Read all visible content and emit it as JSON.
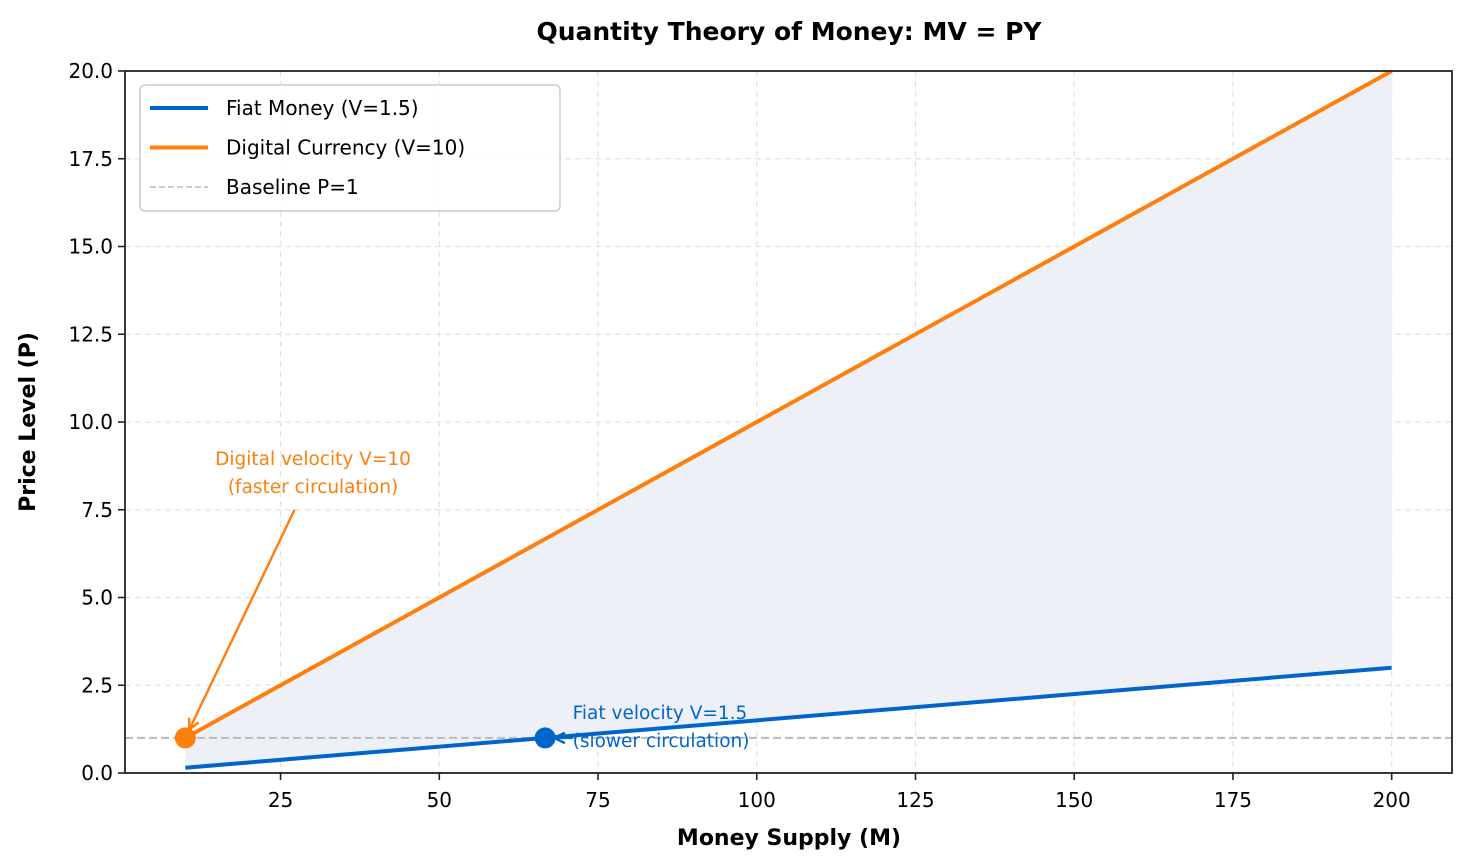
{
  "chart_data": {
    "type": "line",
    "title": "Quantity Theory of Money: MV = PY",
    "xlabel": "Money Supply (M)",
    "ylabel": "Price Level (P)",
    "xlim": [
      0.5,
      209.5
    ],
    "ylim": [
      0,
      20
    ],
    "xticks": [
      25,
      50,
      75,
      100,
      125,
      150,
      175,
      200
    ],
    "xtick_labels": [
      "25",
      "50",
      "75",
      "100",
      "125",
      "150",
      "175",
      "200"
    ],
    "yticks": [
      0,
      2.5,
      5,
      7.5,
      10,
      12.5,
      15,
      17.5,
      20
    ],
    "ytick_labels": [
      "0.0",
      "2.5",
      "5.0",
      "7.5",
      "10.0",
      "12.5",
      "15.0",
      "17.5",
      "20.0"
    ],
    "grid": true,
    "legend_position": "upper left",
    "x": [
      10,
      200
    ],
    "series": [
      {
        "name": "Fiat Money (V=1.5)",
        "color": "#0066cc",
        "values": [
          0.15,
          3.0
        ],
        "style": "solid",
        "width": 4
      },
      {
        "name": "Digital Currency (V=10)",
        "color": "#ff7f0e",
        "values": [
          1.0,
          20.0
        ],
        "style": "solid",
        "width": 4
      },
      {
        "name": "Baseline P=1",
        "color": "#bbbbbb",
        "y_constant": 1,
        "style": "dashed",
        "width": 1.5
      }
    ],
    "fill_between": {
      "series": [
        "Fiat Money (V=1.5)",
        "Digital Currency (V=10)"
      ],
      "color": "#eef0f8"
    },
    "markers": [
      {
        "label": "fiat-point",
        "x": 66.67,
        "y": 1,
        "color": "#0066cc"
      },
      {
        "label": "digital-point",
        "x": 10,
        "y": 1,
        "color": "#ff7f0e"
      }
    ],
    "annotations": [
      {
        "lines": [
          "Digital velocity V=10",
          "(faster circulation)"
        ],
        "color": "#ff7f0e",
        "text_x": 29.5,
        "text_y": 8.6,
        "arrow_from": [
          27.2,
          7.5
        ],
        "arrow_to": [
          10,
          1
        ]
      },
      {
        "lines": [
          "Fiat velocity V=1.5",
          "(slower circulation)"
        ],
        "color": "#0066cc",
        "text_x": 71,
        "text_y": 1.4,
        "arrow_from": [
          71,
          1
        ],
        "arrow_to": [
          66.67,
          1
        ]
      }
    ]
  },
  "legend": {
    "items": [
      {
        "label": "Fiat Money (V=1.5)",
        "color": "#0066cc",
        "style": "solid"
      },
      {
        "label": "Digital Currency (V=10)",
        "color": "#ff7f0e",
        "style": "solid"
      },
      {
        "label": "Baseline P=1",
        "color": "#bbbbbb",
        "style": "dashed"
      }
    ]
  }
}
